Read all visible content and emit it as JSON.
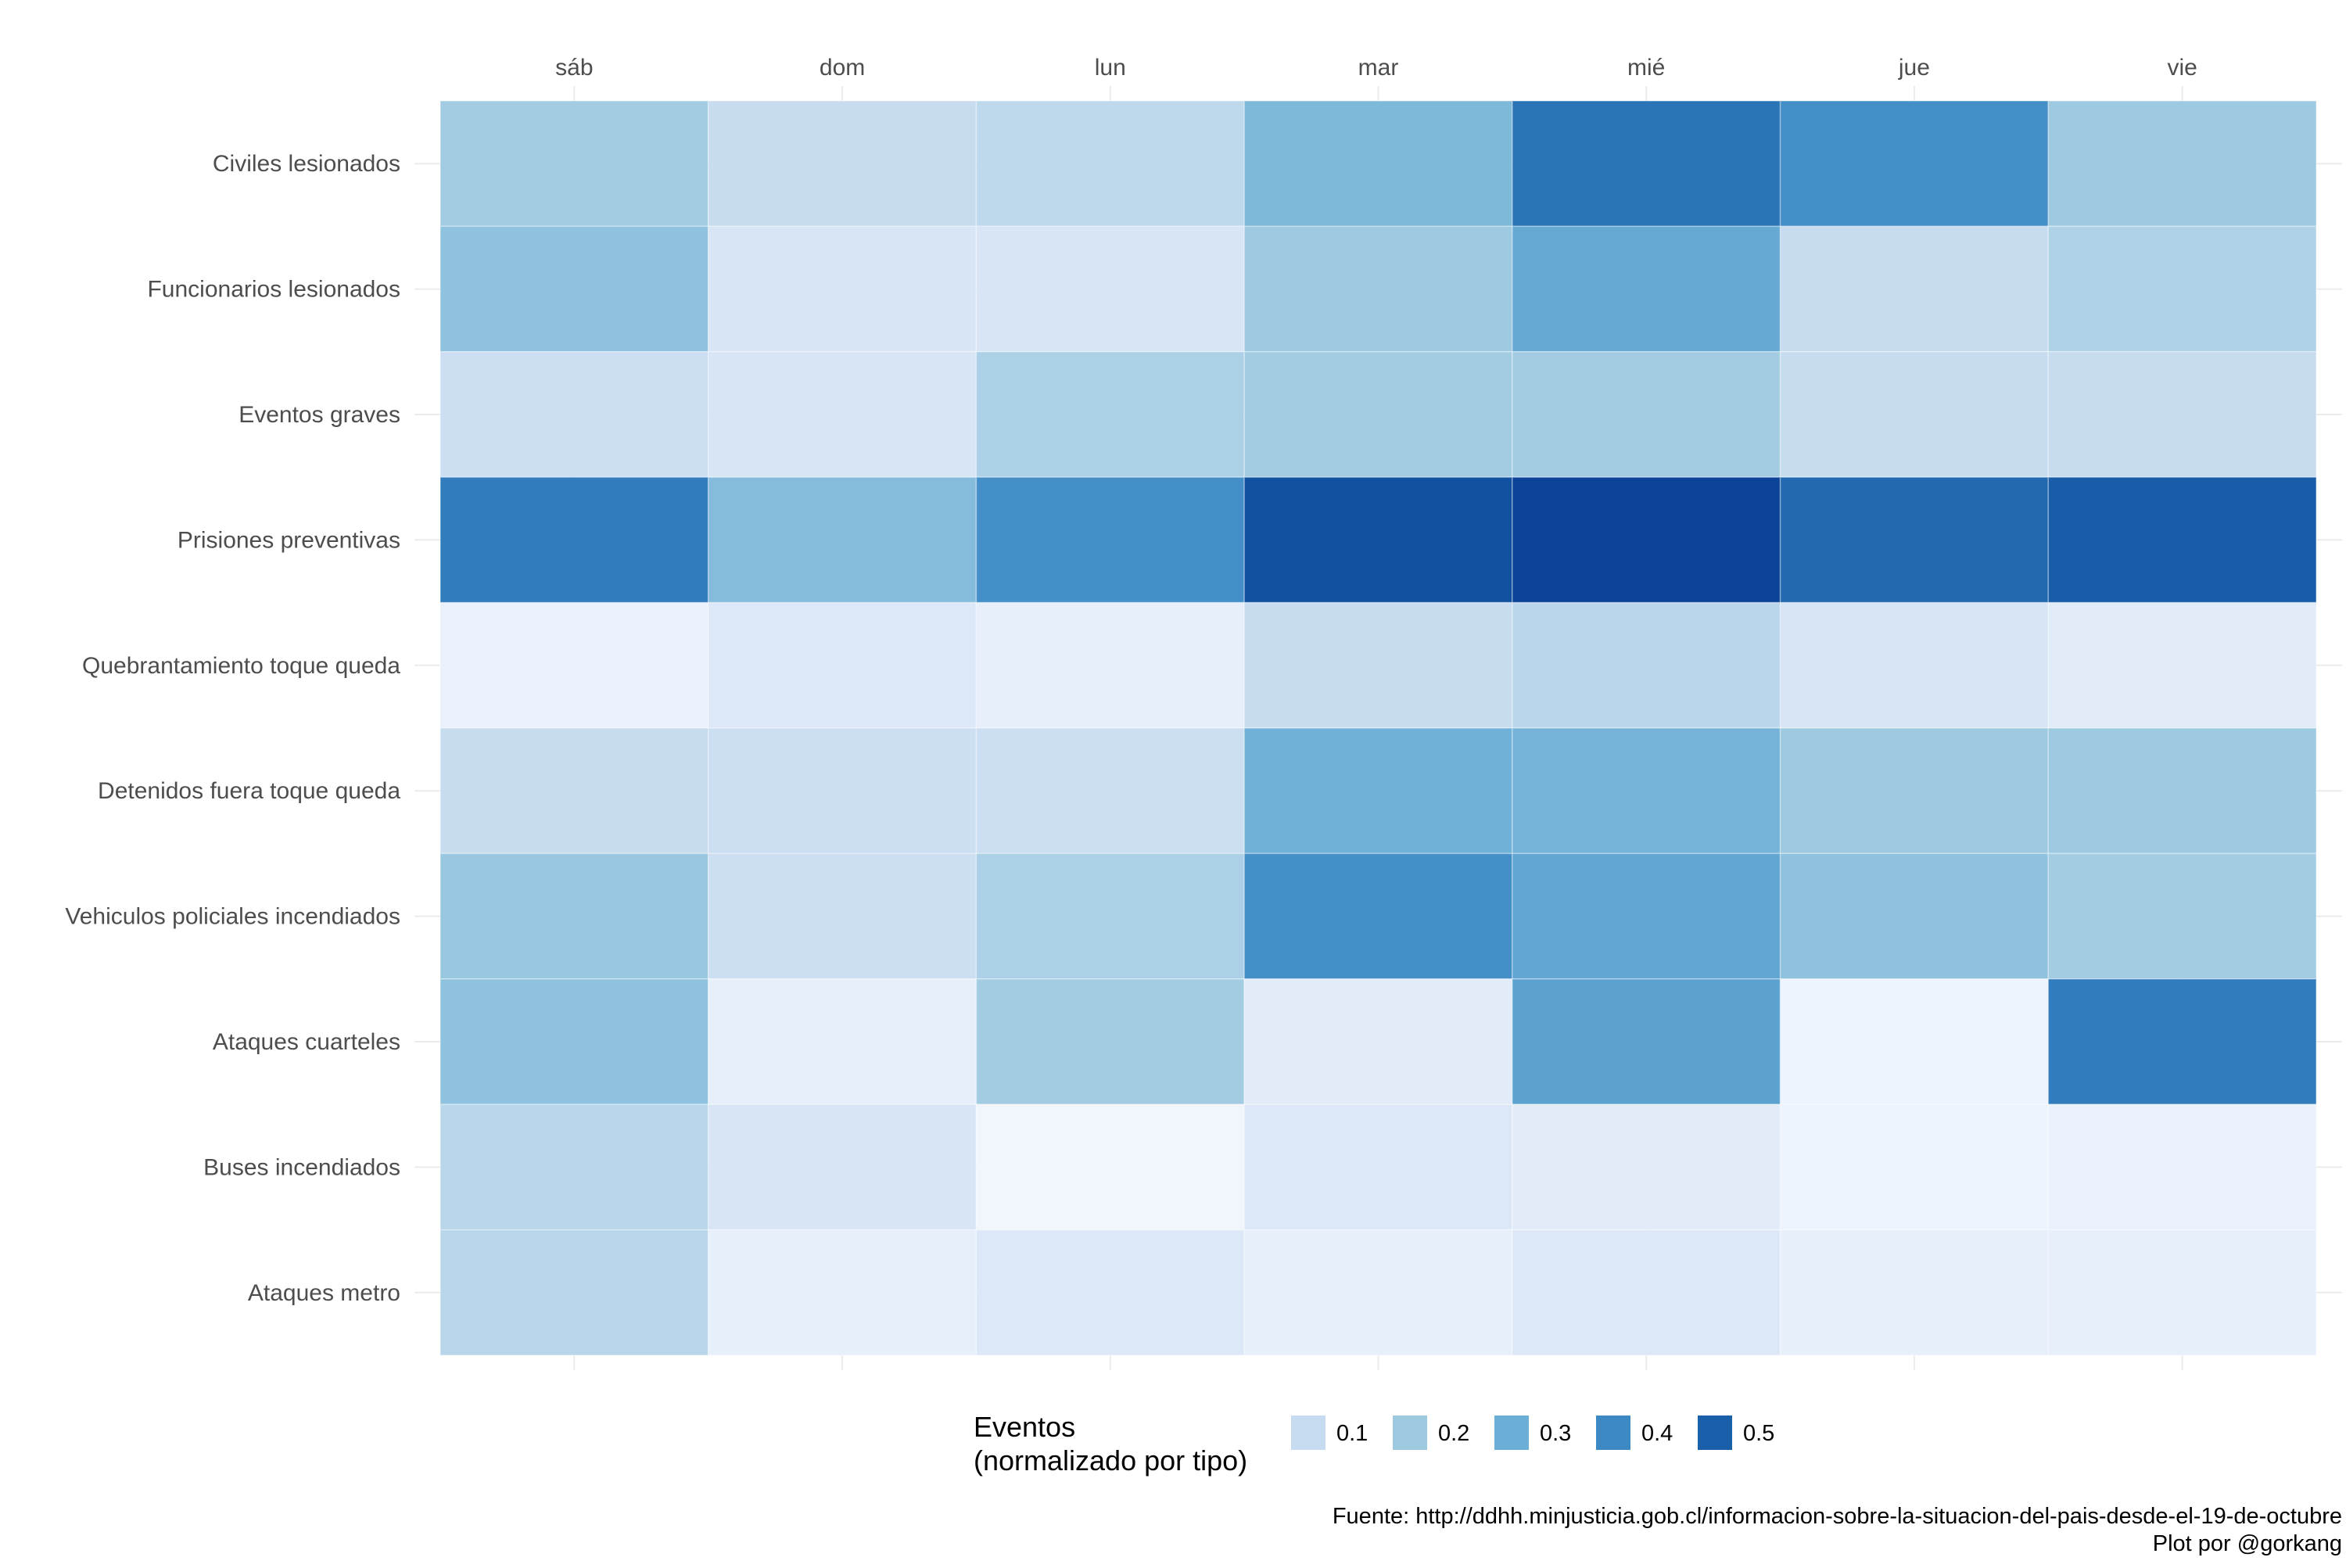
{
  "chart_data": {
    "type": "heatmap",
    "title": "",
    "xlabel": "",
    "ylabel": "",
    "x_categories": [
      "sáb",
      "dom",
      "lun",
      "mar",
      "mié",
      "jue",
      "vie"
    ],
    "y_categories": [
      "Civiles lesionados",
      "Funcionarios lesionados",
      "Eventos graves",
      "Prisiones preventivas",
      "Quebrantamiento toque queda",
      "Detenidos fuera toque queda",
      "Vehiculos policiales incendiados",
      "Ataques cuarteles",
      "Buses incendiados",
      "Ataques metro"
    ],
    "values": [
      [
        0.19,
        0.11,
        0.13,
        0.26,
        0.45,
        0.38,
        0.2
      ],
      [
        0.23,
        0.08,
        0.08,
        0.2,
        0.31,
        0.11,
        0.16
      ],
      [
        0.1,
        0.08,
        0.17,
        0.19,
        0.19,
        0.11,
        0.11
      ],
      [
        0.43,
        0.25,
        0.38,
        0.56,
        0.61,
        0.48,
        0.52
      ],
      [
        0.04,
        0.07,
        0.05,
        0.11,
        0.14,
        0.08,
        0.06
      ],
      [
        0.11,
        0.1,
        0.1,
        0.29,
        0.28,
        0.2,
        0.2
      ],
      [
        0.21,
        0.1,
        0.17,
        0.38,
        0.32,
        0.23,
        0.19
      ],
      [
        0.23,
        0.05,
        0.19,
        0.06,
        0.33,
        0.03,
        0.43
      ],
      [
        0.14,
        0.08,
        0.02,
        0.07,
        0.06,
        0.03,
        0.04
      ],
      [
        0.14,
        0.05,
        0.07,
        0.05,
        0.07,
        0.05,
        0.05
      ]
    ],
    "color_scale": {
      "low": "#f7fbff",
      "mid1": "#c6dbef",
      "mid2": "#9ecae1",
      "mid3": "#6baed6",
      "mid4": "#3182bd",
      "high": "#08306b",
      "domain": [
        0,
        0.65
      ]
    },
    "legend": {
      "title_line1": "Eventos",
      "title_line2": "(normalizado por tipo)",
      "placement": "bottom",
      "items": [
        {
          "label": "0.1",
          "value": 0.1,
          "color": "#c6dbef"
        },
        {
          "label": "0.2",
          "value": 0.2,
          "color": "#9ecae1"
        },
        {
          "label": "0.3",
          "value": 0.3,
          "color": "#6baed6"
        },
        {
          "label": "0.4",
          "value": 0.4,
          "color": "#3c89c4"
        },
        {
          "label": "0.5",
          "value": 0.5,
          "color": "#1a5fa9"
        }
      ]
    },
    "x_axis_position": "top",
    "grid": true
  },
  "caption": {
    "source": "Fuente: http://ddhh.minjusticia.gob.cl/informacion-sobre-la-situacion-del-pais-desde-el-19-de-octubre",
    "credit": "Plot por @gorkang"
  }
}
